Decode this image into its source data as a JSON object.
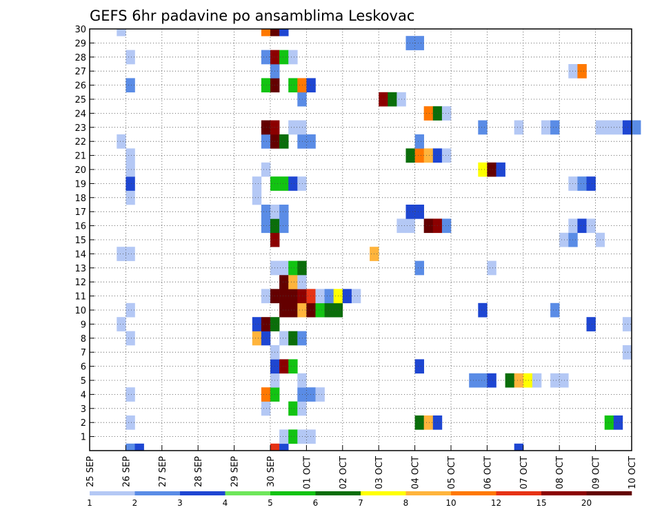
{
  "chart_data": {
    "type": "heatmap",
    "title": "GEFS 6hr padavine po ansamblima Leskovac",
    "x_tick_labels": [
      "25 SEP",
      "26 SEP",
      "27 SEP",
      "28 SEP",
      "29 SEP",
      "30 SEP",
      "01 OCT",
      "02 OCT",
      "03 OCT",
      "04 OCT",
      "05 OCT",
      "06 OCT",
      "07 OCT",
      "08 OCT",
      "09 OCT",
      "10 OCT"
    ],
    "y_tick_labels": [
      "1",
      "2",
      "3",
      "4",
      "5",
      "6",
      "7",
      "8",
      "9",
      "10",
      "11",
      "12",
      "13",
      "14",
      "15",
      "16",
      "17",
      "18",
      "19",
      "20",
      "21",
      "22",
      "23",
      "24",
      "25",
      "26",
      "27",
      "28",
      "29",
      "30"
    ],
    "x_range_days": [
      0,
      15
    ],
    "y_range": [
      0,
      30
    ],
    "grid": true,
    "colorbar_labels": [
      "1",
      "2",
      "3",
      "4",
      "5",
      "6",
      "7",
      "8",
      "10",
      "12",
      "15",
      "20"
    ],
    "colorbar_colors": [
      "#b4c8f5",
      "#5a8ce6",
      "#1e46d2",
      "#6ee65a",
      "#12c312",
      "#0a6e0a",
      "#ffff00",
      "#ffb43c",
      "#ff7800",
      "#e63214",
      "#8c0000",
      "#640000"
    ],
    "cells": [
      [
        1,
        0,
        2
      ],
      [
        1.25,
        0,
        3
      ],
      [
        5.0,
        0,
        12
      ],
      [
        5.25,
        0,
        3
      ],
      [
        11.75,
        0,
        3
      ],
      [
        5.25,
        1,
        1
      ],
      [
        5.5,
        1,
        5
      ],
      [
        5.75,
        1,
        1
      ],
      [
        6.0,
        1,
        1
      ],
      [
        1.0,
        2,
        1
      ],
      [
        9.0,
        2,
        6
      ],
      [
        9.25,
        2,
        8
      ],
      [
        9.5,
        2,
        3
      ],
      [
        14.25,
        2,
        5
      ],
      [
        14.5,
        2,
        3
      ],
      [
        4.75,
        3,
        1
      ],
      [
        5.5,
        3,
        5
      ],
      [
        5.75,
        3,
        1
      ],
      [
        1.0,
        4,
        1
      ],
      [
        4.75,
        4,
        10
      ],
      [
        5.0,
        4,
        5
      ],
      [
        5.75,
        4,
        2
      ],
      [
        6.0,
        4,
        2
      ],
      [
        6.25,
        4,
        1
      ],
      [
        5.0,
        5,
        1
      ],
      [
        5.75,
        5,
        1
      ],
      [
        10.5,
        5,
        2
      ],
      [
        10.75,
        5,
        2
      ],
      [
        11.0,
        5,
        3
      ],
      [
        11.5,
        5,
        6
      ],
      [
        11.75,
        5,
        8
      ],
      [
        12.0,
        5,
        7
      ],
      [
        12.25,
        5,
        1
      ],
      [
        12.75,
        5,
        1
      ],
      [
        13.0,
        5,
        1
      ],
      [
        5.0,
        6,
        3
      ],
      [
        5.25,
        6,
        15
      ],
      [
        5.5,
        6,
        5
      ],
      [
        9.0,
        6,
        3
      ],
      [
        5.0,
        7,
        1
      ],
      [
        14.75,
        7,
        1
      ],
      [
        1.0,
        8,
        1
      ],
      [
        4.5,
        8,
        8
      ],
      [
        4.75,
        8,
        3
      ],
      [
        5.25,
        8,
        1
      ],
      [
        5.5,
        8,
        6
      ],
      [
        5.75,
        8,
        2
      ],
      [
        0.75,
        9,
        1
      ],
      [
        4.5,
        9,
        3
      ],
      [
        4.75,
        9,
        20
      ],
      [
        5.0,
        9,
        6
      ],
      [
        13.75,
        9,
        3
      ],
      [
        14.75,
        9,
        1
      ],
      [
        1.0,
        10,
        1
      ],
      [
        5.25,
        10,
        20
      ],
      [
        5.5,
        10,
        20
      ],
      [
        5.75,
        10,
        8
      ],
      [
        6.0,
        10,
        20
      ],
      [
        6.25,
        10,
        5
      ],
      [
        6.5,
        10,
        6
      ],
      [
        6.75,
        10,
        6
      ],
      [
        10.75,
        10,
        3
      ],
      [
        12.75,
        10,
        2
      ],
      [
        4.75,
        11,
        1
      ],
      [
        5.0,
        11,
        20
      ],
      [
        5.25,
        11,
        20
      ],
      [
        5.5,
        11,
        20
      ],
      [
        5.75,
        11,
        15
      ],
      [
        6.0,
        11,
        12
      ],
      [
        6.25,
        11,
        1
      ],
      [
        6.5,
        11,
        2
      ],
      [
        6.75,
        11,
        7
      ],
      [
        7.0,
        11,
        3
      ],
      [
        7.25,
        11,
        1
      ],
      [
        5.25,
        12,
        20
      ],
      [
        5.5,
        12,
        8
      ],
      [
        5.75,
        12,
        1
      ],
      [
        5.0,
        13,
        1
      ],
      [
        5.25,
        13,
        1
      ],
      [
        5.5,
        13,
        5
      ],
      [
        5.75,
        13,
        6
      ],
      [
        9.0,
        13,
        2
      ],
      [
        11.0,
        13,
        1
      ],
      [
        0.75,
        14,
        1
      ],
      [
        1.0,
        14,
        1
      ],
      [
        7.75,
        14,
        8
      ],
      [
        5.0,
        15,
        15
      ],
      [
        13.0,
        15,
        1
      ],
      [
        13.25,
        15,
        2
      ],
      [
        14.0,
        15,
        1
      ],
      [
        4.75,
        16,
        2
      ],
      [
        5.0,
        16,
        6
      ],
      [
        5.25,
        16,
        2
      ],
      [
        8.5,
        16,
        1
      ],
      [
        8.75,
        16,
        1
      ],
      [
        9.25,
        16,
        20
      ],
      [
        9.5,
        16,
        15
      ],
      [
        9.75,
        16,
        2
      ],
      [
        13.25,
        16,
        1
      ],
      [
        13.5,
        16,
        3
      ],
      [
        13.75,
        16,
        1
      ],
      [
        4.75,
        17,
        2
      ],
      [
        5.0,
        17,
        1
      ],
      [
        5.25,
        17,
        2
      ],
      [
        8.75,
        17,
        3
      ],
      [
        9.0,
        17,
        3
      ],
      [
        1.0,
        18,
        1
      ],
      [
        4.5,
        18,
        1
      ],
      [
        1.0,
        19,
        3
      ],
      [
        4.5,
        19,
        1
      ],
      [
        5.0,
        19,
        5
      ],
      [
        5.25,
        19,
        5
      ],
      [
        5.5,
        19,
        3
      ],
      [
        5.75,
        19,
        1
      ],
      [
        13.25,
        19,
        1
      ],
      [
        13.5,
        19,
        2
      ],
      [
        13.75,
        19,
        3
      ],
      [
        1.0,
        20,
        1
      ],
      [
        4.75,
        20,
        1
      ],
      [
        10.75,
        20,
        7
      ],
      [
        11.0,
        20,
        20
      ],
      [
        11.25,
        20,
        3
      ],
      [
        1.0,
        21,
        1
      ],
      [
        8.75,
        21,
        6
      ],
      [
        9.0,
        21,
        10
      ],
      [
        9.25,
        21,
        8
      ],
      [
        9.5,
        21,
        3
      ],
      [
        9.75,
        21,
        1
      ],
      [
        0.75,
        22,
        1
      ],
      [
        4.75,
        22,
        2
      ],
      [
        5.0,
        22,
        20
      ],
      [
        5.25,
        22,
        6
      ],
      [
        5.75,
        22,
        2
      ],
      [
        6.0,
        22,
        2
      ],
      [
        9.0,
        22,
        2
      ],
      [
        4.75,
        23,
        20
      ],
      [
        5.0,
        23,
        15
      ],
      [
        5.5,
        23,
        1
      ],
      [
        5.75,
        23,
        1
      ],
      [
        10.75,
        23,
        2
      ],
      [
        11.75,
        23,
        1
      ],
      [
        12.5,
        23,
        1
      ],
      [
        12.75,
        23,
        2
      ],
      [
        14.0,
        23,
        1
      ],
      [
        14.25,
        23,
        1
      ],
      [
        14.5,
        23,
        1
      ],
      [
        14.75,
        23,
        3
      ],
      [
        15.0,
        23,
        2
      ],
      [
        9.25,
        24,
        10
      ],
      [
        9.5,
        24,
        6
      ],
      [
        9.75,
        24,
        1
      ],
      [
        5.75,
        25,
        2
      ],
      [
        8.0,
        25,
        15
      ],
      [
        8.25,
        25,
        6
      ],
      [
        8.5,
        25,
        1
      ],
      [
        1.0,
        26,
        2
      ],
      [
        4.75,
        26,
        5
      ],
      [
        5.0,
        26,
        20
      ],
      [
        5.5,
        26,
        5
      ],
      [
        5.75,
        26,
        10
      ],
      [
        6.0,
        26,
        3
      ],
      [
        13.25,
        27,
        1
      ],
      [
        13.5,
        27,
        10
      ],
      [
        5.0,
        27,
        2
      ],
      [
        1.0,
        28,
        1
      ],
      [
        4.75,
        28,
        2
      ],
      [
        5.0,
        28,
        15
      ],
      [
        5.25,
        28,
        5
      ],
      [
        5.5,
        28,
        1
      ],
      [
        8.75,
        29,
        2
      ],
      [
        9.0,
        29,
        2
      ],
      [
        0.75,
        30,
        1
      ],
      [
        4.75,
        30,
        10
      ],
      [
        5.0,
        30,
        20
      ],
      [
        5.25,
        30,
        3
      ]
    ]
  }
}
